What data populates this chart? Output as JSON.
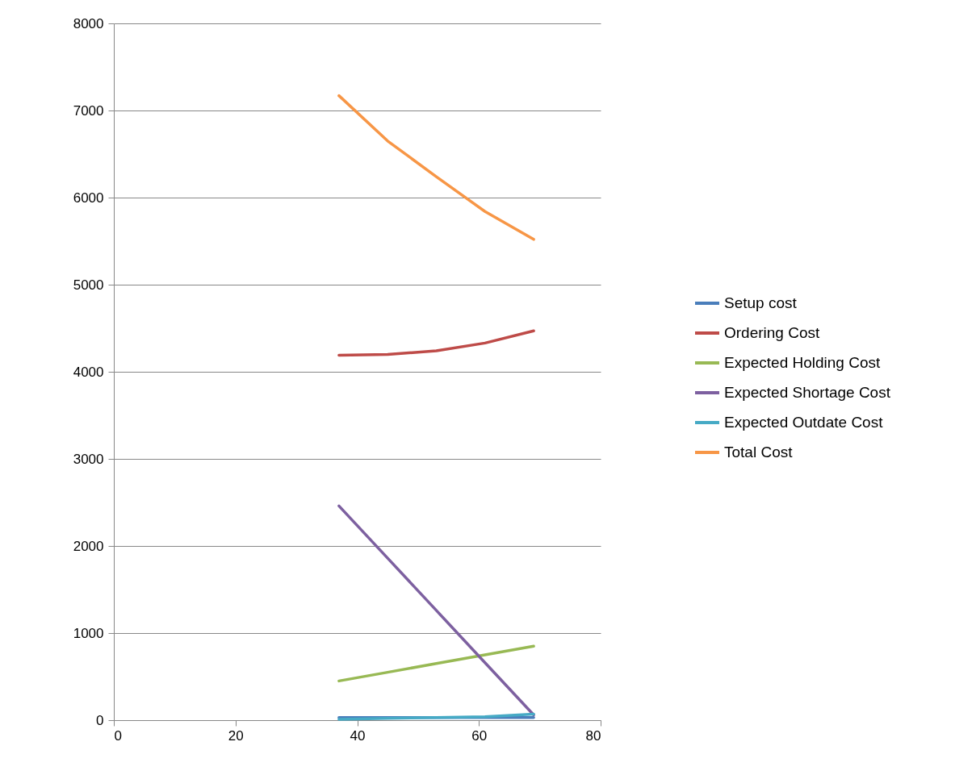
{
  "chart_data": {
    "type": "line",
    "x": [
      37,
      45,
      53,
      61,
      69
    ],
    "xlim": [
      0,
      80
    ],
    "xticks": [
      0,
      20,
      40,
      60,
      80
    ],
    "ylim": [
      0,
      8000
    ],
    "yticks": [
      0,
      1000,
      2000,
      3000,
      4000,
      5000,
      6000,
      7000,
      8000
    ],
    "grid": "y",
    "legend": "right",
    "marker": "none",
    "line_style": "solid",
    "series": [
      {
        "name": "Setup  cost",
        "color": "#4a7ebb",
        "values": [
          30,
          30,
          30,
          30,
          30
        ]
      },
      {
        "name": "Ordering Cost",
        "color": "#be4b48",
        "values": [
          4190,
          4200,
          4240,
          4330,
          4470
        ]
      },
      {
        "name": "Expected Holding Cost",
        "color": "#98b954",
        "values": [
          450,
          550,
          650,
          750,
          850
        ]
      },
      {
        "name": "Expected Shortage Cost",
        "color": "#7d60a0",
        "values": [
          2460,
          1860,
          1260,
          660,
          60
        ]
      },
      {
        "name": "Expected Outdate  Cost",
        "color": "#46aac5",
        "values": [
          10,
          20,
          30,
          40,
          70
        ]
      },
      {
        "name": "Total Cost",
        "color": "#f79646",
        "values": [
          7170,
          6650,
          6240,
          5840,
          5520
        ]
      }
    ]
  }
}
